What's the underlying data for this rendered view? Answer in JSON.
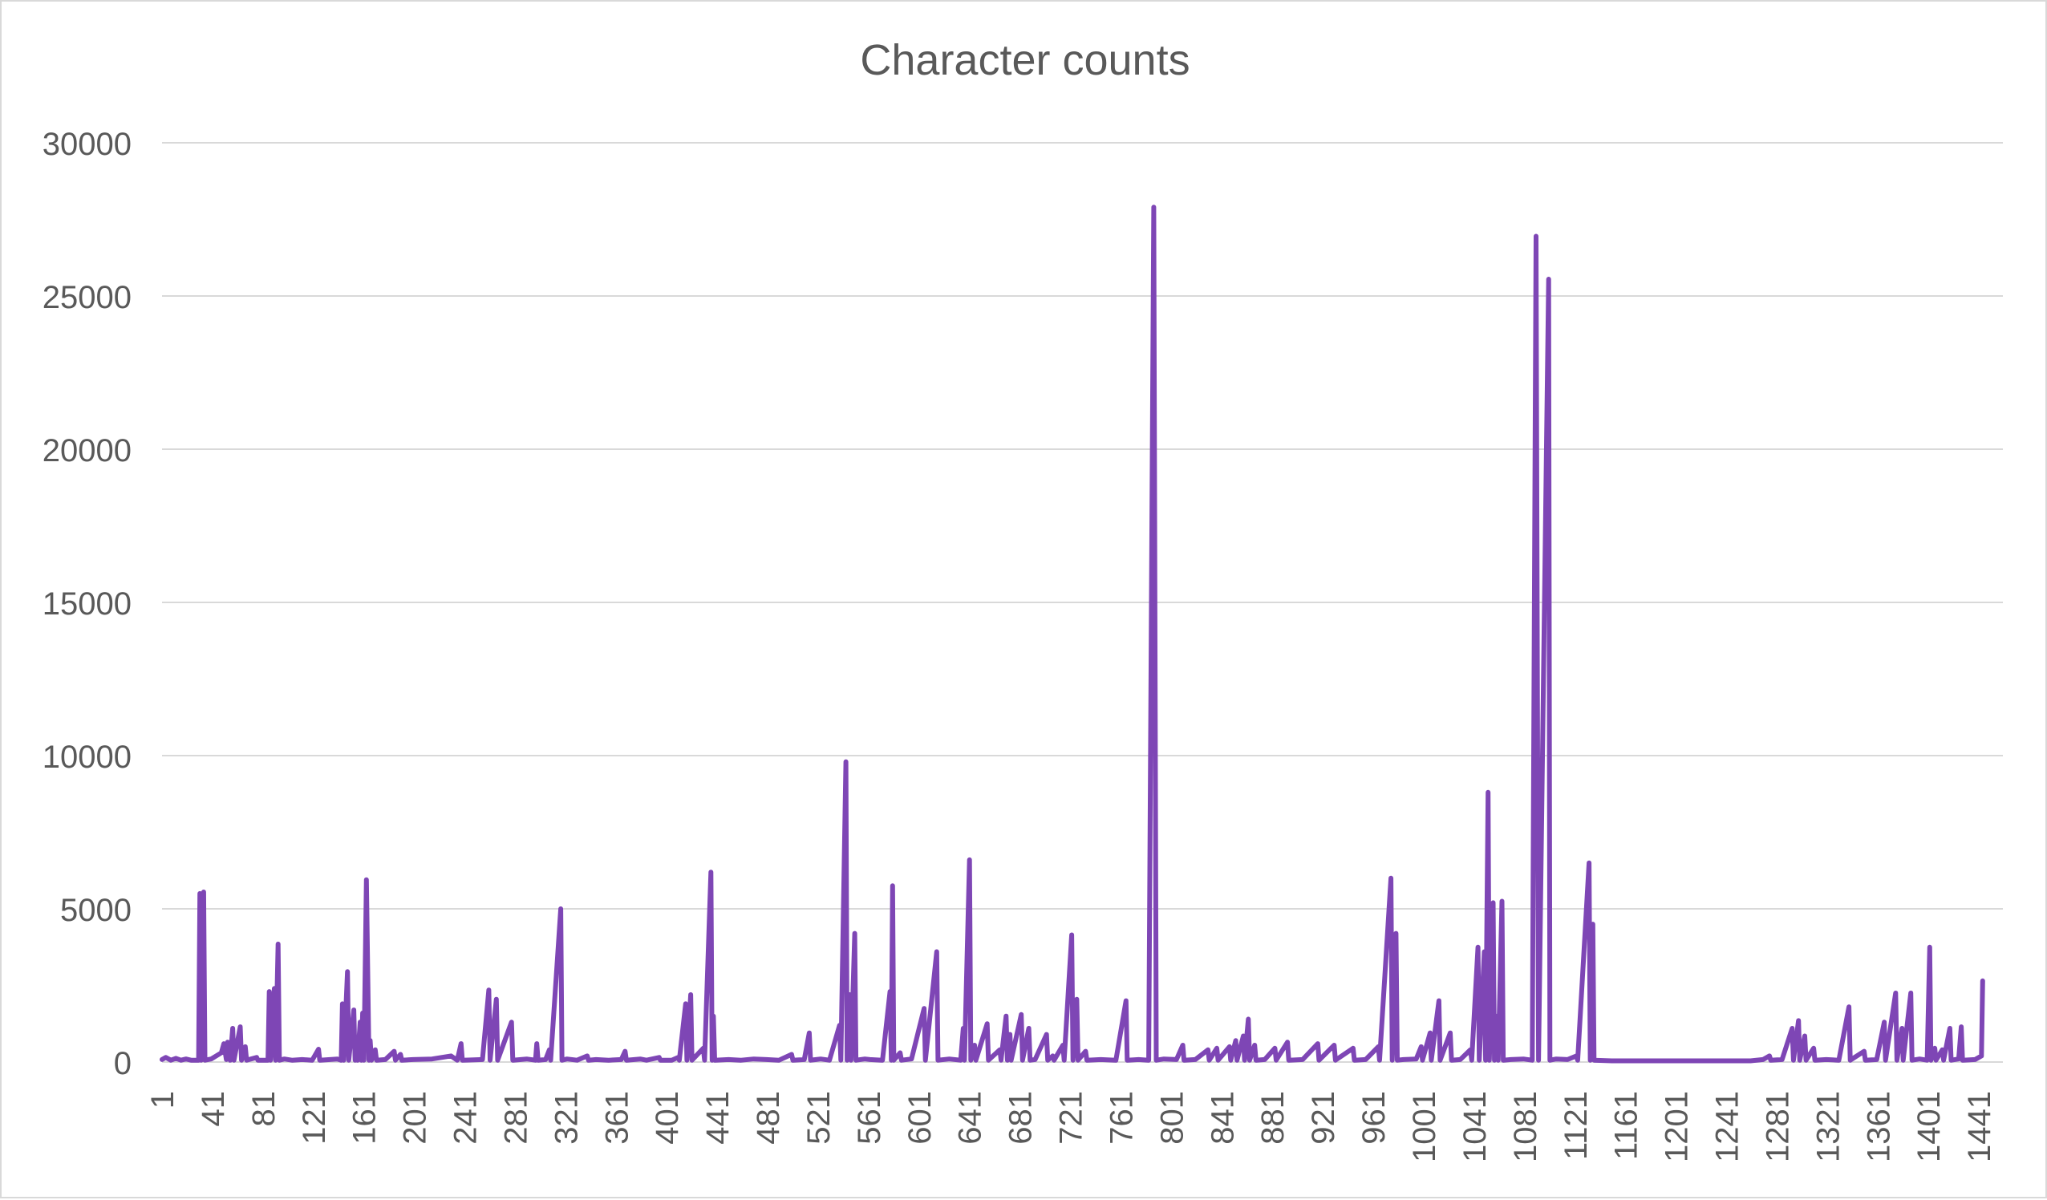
{
  "chart_data": {
    "type": "line",
    "title": "Character counts",
    "xlabel": "",
    "ylabel": "",
    "x_range": [
      1,
      1460
    ],
    "ylim": [
      0,
      30000
    ],
    "y_ticks": [
      0,
      5000,
      10000,
      15000,
      20000,
      25000,
      30000
    ],
    "x_tick_labels": [
      1,
      41,
      81,
      121,
      161,
      201,
      241,
      281,
      321,
      361,
      401,
      441,
      481,
      521,
      561,
      601,
      641,
      681,
      721,
      761,
      801,
      841,
      881,
      921,
      961,
      1001,
      1041,
      1081,
      1121,
      1161,
      1201,
      1241,
      1281,
      1321,
      1361,
      1401,
      1441
    ],
    "grid": true,
    "legend": "none",
    "baseline_value": 60,
    "series": [
      {
        "color": "#7e46b5",
        "points": [
          [
            1,
            80
          ],
          [
            4,
            150
          ],
          [
            8,
            60
          ],
          [
            12,
            120
          ],
          [
            16,
            60
          ],
          [
            20,
            100
          ],
          [
            24,
            60
          ],
          [
            30,
            60
          ],
          [
            31,
            5500
          ],
          [
            32,
            60
          ],
          [
            34,
            5550
          ],
          [
            35,
            60
          ],
          [
            40,
            100
          ],
          [
            48,
            300
          ],
          [
            50,
            600
          ],
          [
            52,
            80
          ],
          [
            53,
            650
          ],
          [
            55,
            60
          ],
          [
            57,
            1100
          ],
          [
            58,
            60
          ],
          [
            63,
            1150
          ],
          [
            64,
            60
          ],
          [
            67,
            500
          ],
          [
            68,
            60
          ],
          [
            76,
            150
          ],
          [
            77,
            60
          ],
          [
            85,
            60
          ],
          [
            86,
            2300
          ],
          [
            87,
            60
          ],
          [
            90,
            2400
          ],
          [
            91,
            60
          ],
          [
            93,
            3850
          ],
          [
            94,
            60
          ],
          [
            98,
            100
          ],
          [
            104,
            60
          ],
          [
            112,
            80
          ],
          [
            120,
            60
          ],
          [
            125,
            420
          ],
          [
            126,
            60
          ],
          [
            140,
            100
          ],
          [
            143,
            60
          ],
          [
            144,
            1900
          ],
          [
            145,
            60
          ],
          [
            148,
            2950
          ],
          [
            149,
            60
          ],
          [
            153,
            1700
          ],
          [
            154,
            60
          ],
          [
            155,
            800
          ],
          [
            156,
            60
          ],
          [
            158,
            1300
          ],
          [
            159,
            60
          ],
          [
            160,
            1600
          ],
          [
            161,
            60
          ],
          [
            163,
            5950
          ],
          [
            165,
            60
          ],
          [
            166,
            700
          ],
          [
            167,
            60
          ],
          [
            170,
            400
          ],
          [
            171,
            60
          ],
          [
            178,
            80
          ],
          [
            185,
            350
          ],
          [
            186,
            60
          ],
          [
            190,
            250
          ],
          [
            191,
            60
          ],
          [
            200,
            80
          ],
          [
            215,
            100
          ],
          [
            230,
            200
          ],
          [
            235,
            60
          ],
          [
            238,
            600
          ],
          [
            239,
            60
          ],
          [
            255,
            80
          ],
          [
            260,
            2350
          ],
          [
            261,
            60
          ],
          [
            266,
            2050
          ],
          [
            267,
            60
          ],
          [
            278,
            1300
          ],
          [
            279,
            60
          ],
          [
            290,
            100
          ],
          [
            297,
            60
          ],
          [
            298,
            600
          ],
          [
            299,
            60
          ],
          [
            305,
            80
          ],
          [
            308,
            400
          ],
          [
            309,
            60
          ],
          [
            317,
            5000
          ],
          [
            318,
            60
          ],
          [
            322,
            100
          ],
          [
            330,
            60
          ],
          [
            338,
            200
          ],
          [
            339,
            60
          ],
          [
            345,
            80
          ],
          [
            355,
            60
          ],
          [
            365,
            80
          ],
          [
            368,
            350
          ],
          [
            369,
            60
          ],
          [
            380,
            100
          ],
          [
            385,
            60
          ],
          [
            395,
            150
          ],
          [
            396,
            60
          ],
          [
            405,
            60
          ],
          [
            410,
            150
          ],
          [
            411,
            60
          ],
          [
            416,
            1900
          ],
          [
            417,
            60
          ],
          [
            420,
            2200
          ],
          [
            421,
            60
          ],
          [
            430,
            450
          ],
          [
            431,
            60
          ],
          [
            436,
            6200
          ],
          [
            437,
            60
          ],
          [
            438,
            1500
          ],
          [
            439,
            60
          ],
          [
            450,
            80
          ],
          [
            460,
            60
          ],
          [
            470,
            100
          ],
          [
            480,
            80
          ],
          [
            490,
            60
          ],
          [
            500,
            250
          ],
          [
            501,
            60
          ],
          [
            510,
            80
          ],
          [
            514,
            950
          ],
          [
            515,
            60
          ],
          [
            523,
            100
          ],
          [
            530,
            60
          ],
          [
            538,
            1200
          ],
          [
            539,
            60
          ],
          [
            543,
            9800
          ],
          [
            544,
            60
          ],
          [
            546,
            2200
          ],
          [
            547,
            60
          ],
          [
            550,
            4200
          ],
          [
            551,
            60
          ],
          [
            558,
            100
          ],
          [
            562,
            80
          ],
          [
            572,
            60
          ],
          [
            578,
            2300
          ],
          [
            579,
            60
          ],
          [
            580,
            5750
          ],
          [
            581,
            60
          ],
          [
            586,
            300
          ],
          [
            587,
            60
          ],
          [
            595,
            100
          ],
          [
            605,
            1750
          ],
          [
            606,
            60
          ],
          [
            615,
            3600
          ],
          [
            616,
            60
          ],
          [
            625,
            100
          ],
          [
            634,
            60
          ],
          [
            636,
            1100
          ],
          [
            637,
            60
          ],
          [
            641,
            6600
          ],
          [
            642,
            60
          ],
          [
            645,
            550
          ],
          [
            646,
            60
          ],
          [
            655,
            1250
          ],
          [
            656,
            60
          ],
          [
            665,
            400
          ],
          [
            666,
            60
          ],
          [
            670,
            1500
          ],
          [
            671,
            60
          ],
          [
            673,
            900
          ],
          [
            674,
            60
          ],
          [
            682,
            1550
          ],
          [
            683,
            60
          ],
          [
            688,
            1100
          ],
          [
            689,
            60
          ],
          [
            693,
            80
          ],
          [
            702,
            900
          ],
          [
            703,
            60
          ],
          [
            707,
            200
          ],
          [
            708,
            60
          ],
          [
            715,
            550
          ],
          [
            716,
            60
          ],
          [
            722,
            4150
          ],
          [
            723,
            60
          ],
          [
            726,
            2050
          ],
          [
            727,
            60
          ],
          [
            733,
            350
          ],
          [
            734,
            60
          ],
          [
            745,
            80
          ],
          [
            757,
            60
          ],
          [
            765,
            2000
          ],
          [
            766,
            60
          ],
          [
            775,
            80
          ],
          [
            783,
            60
          ],
          [
            787,
            27900
          ],
          [
            789,
            60
          ],
          [
            795,
            100
          ],
          [
            805,
            80
          ],
          [
            810,
            550
          ],
          [
            811,
            60
          ],
          [
            820,
            80
          ],
          [
            830,
            400
          ],
          [
            831,
            60
          ],
          [
            837,
            450
          ],
          [
            838,
            60
          ],
          [
            847,
            500
          ],
          [
            848,
            60
          ],
          [
            852,
            700
          ],
          [
            853,
            60
          ],
          [
            858,
            850
          ],
          [
            859,
            60
          ],
          [
            862,
            1400
          ],
          [
            863,
            60
          ],
          [
            867,
            550
          ],
          [
            868,
            60
          ],
          [
            875,
            80
          ],
          [
            883,
            450
          ],
          [
            884,
            60
          ],
          [
            893,
            650
          ],
          [
            894,
            60
          ],
          [
            905,
            80
          ],
          [
            917,
            600
          ],
          [
            918,
            60
          ],
          [
            930,
            550
          ],
          [
            931,
            60
          ],
          [
            945,
            450
          ],
          [
            946,
            60
          ],
          [
            955,
            80
          ],
          [
            965,
            500
          ],
          [
            966,
            60
          ],
          [
            975,
            6000
          ],
          [
            976,
            60
          ],
          [
            979,
            4200
          ],
          [
            980,
            60
          ],
          [
            985,
            80
          ],
          [
            995,
            100
          ],
          [
            999,
            500
          ],
          [
            1000,
            60
          ],
          [
            1006,
            950
          ],
          [
            1007,
            60
          ],
          [
            1013,
            2000
          ],
          [
            1014,
            60
          ],
          [
            1022,
            950
          ],
          [
            1023,
            60
          ],
          [
            1030,
            80
          ],
          [
            1038,
            400
          ],
          [
            1039,
            60
          ],
          [
            1044,
            3750
          ],
          [
            1045,
            60
          ],
          [
            1049,
            3600
          ],
          [
            1050,
            60
          ],
          [
            1052,
            8800
          ],
          [
            1053,
            60
          ],
          [
            1056,
            5200
          ],
          [
            1057,
            60
          ],
          [
            1059,
            1500
          ],
          [
            1060,
            60
          ],
          [
            1063,
            5250
          ],
          [
            1064,
            60
          ],
          [
            1070,
            80
          ],
          [
            1080,
            100
          ],
          [
            1087,
            60
          ],
          [
            1090,
            26950
          ],
          [
            1092,
            60
          ],
          [
            1100,
            25550
          ],
          [
            1101,
            60
          ],
          [
            1106,
            100
          ],
          [
            1115,
            80
          ],
          [
            1122,
            200
          ],
          [
            1123,
            60
          ],
          [
            1132,
            6500
          ],
          [
            1133,
            60
          ],
          [
            1135,
            4500
          ],
          [
            1136,
            60
          ],
          [
            1150,
            40
          ],
          [
            1200,
            40
          ],
          [
            1260,
            40
          ],
          [
            1270,
            80
          ],
          [
            1275,
            200
          ],
          [
            1276,
            60
          ],
          [
            1285,
            80
          ],
          [
            1293,
            1100
          ],
          [
            1294,
            60
          ],
          [
            1298,
            1350
          ],
          [
            1299,
            60
          ],
          [
            1303,
            850
          ],
          [
            1304,
            60
          ],
          [
            1310,
            450
          ],
          [
            1311,
            60
          ],
          [
            1320,
            80
          ],
          [
            1330,
            60
          ],
          [
            1338,
            1800
          ],
          [
            1339,
            60
          ],
          [
            1350,
            350
          ],
          [
            1351,
            60
          ],
          [
            1360,
            80
          ],
          [
            1366,
            1300
          ],
          [
            1367,
            60
          ],
          [
            1375,
            2250
          ],
          [
            1376,
            60
          ],
          [
            1380,
            1100
          ],
          [
            1381,
            60
          ],
          [
            1387,
            2250
          ],
          [
            1388,
            60
          ],
          [
            1394,
            100
          ],
          [
            1400,
            60
          ],
          [
            1402,
            3750
          ],
          [
            1403,
            60
          ],
          [
            1406,
            450
          ],
          [
            1407,
            60
          ],
          [
            1412,
            400
          ],
          [
            1413,
            60
          ],
          [
            1418,
            1100
          ],
          [
            1419,
            60
          ],
          [
            1425,
            100
          ],
          [
            1427,
            1150
          ],
          [
            1428,
            60
          ],
          [
            1438,
            80
          ],
          [
            1443,
            200
          ],
          [
            1444,
            2650
          ]
        ]
      }
    ]
  }
}
